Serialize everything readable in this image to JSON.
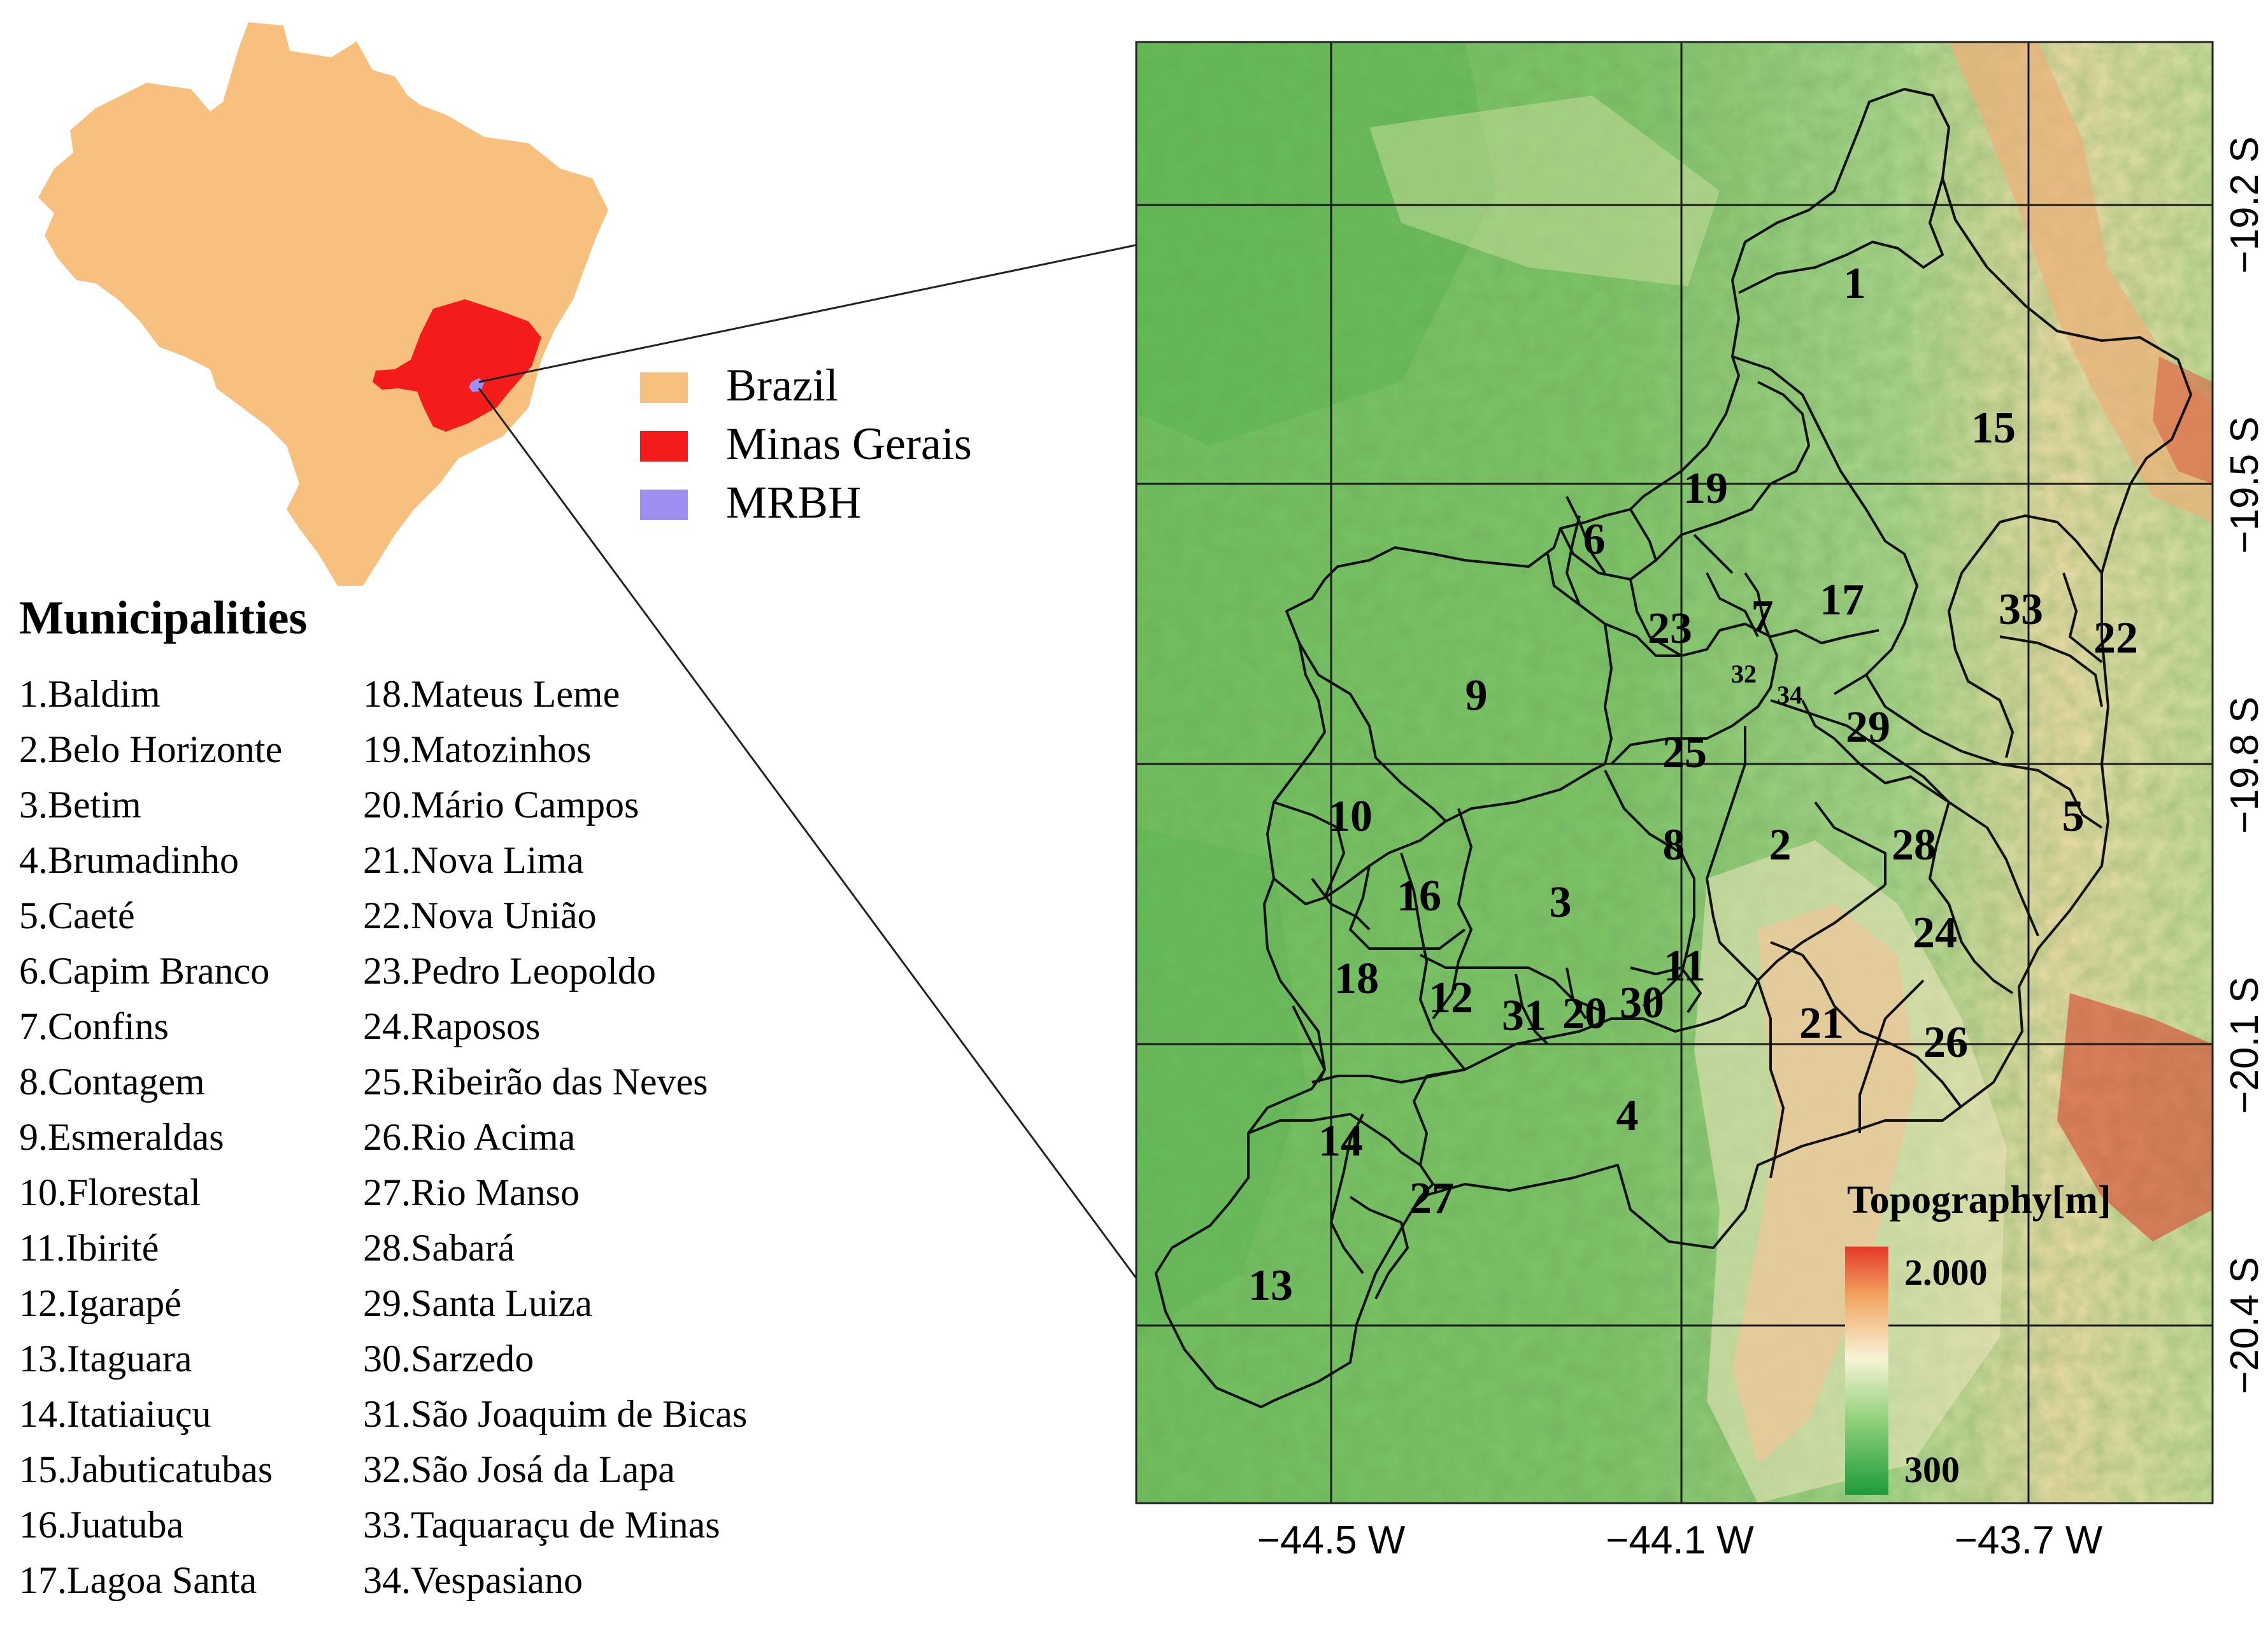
{
  "legend": {
    "items": [
      {
        "label": "Brazil",
        "color": "#F8C07F"
      },
      {
        "label": "Minas Gerais",
        "color": "#F41B1B"
      },
      {
        "label": "MRBH",
        "color": "#9D8FF0"
      }
    ]
  },
  "municipalities": {
    "title": "Municipalities",
    "column_1": [
      "1.Baldim",
      "2.Belo Horizonte",
      "3.Betim",
      "4.Brumadinho",
      "5.Caeté",
      "6.Capim Branco",
      "7.Confins",
      "8.Contagem",
      "9.Esmeraldas",
      "10.Florestal",
      "11.Ibirité",
      "12.Igarapé",
      "13.Itaguara",
      "14.Itatiaiuçu",
      "15.Jabuticatubas",
      "16.Juatuba",
      "17.Lagoa Santa"
    ],
    "column_2": [
      "18.Mateus Leme",
      "19.Matozinhos",
      "20.Mário Campos",
      "21.Nova Lima",
      "22.Nova União",
      "23.Pedro Leopoldo",
      "24.Raposos",
      "25.Ribeirão das Neves",
      "26.Rio Acima",
      "27.Rio Manso",
      "28.Sabará",
      "29.Santa Luiza",
      "30.Sarzedo",
      "31.São Joaquim de Bicas",
      "32.São Josá da Lapa",
      "33.Taquaraçu de Minas",
      "34.Vespasiano"
    ]
  },
  "map": {
    "lon_ticks": [
      {
        "label": "−44.5 W",
        "value": -44.5
      },
      {
        "label": "−44.1 W",
        "value": -44.1
      },
      {
        "label": "−43.7 W",
        "value": -43.7
      }
    ],
    "lat_ticks": [
      {
        "label": "−19.2 S",
        "value": -19.2
      },
      {
        "label": "−19.5 S",
        "value": -19.5
      },
      {
        "label": "−19.8 S",
        "value": -19.8
      },
      {
        "label": "−20.1 S",
        "value": -20.1
      },
      {
        "label": "−20.4 S",
        "value": -20.4
      }
    ],
    "region_labels": [
      "1",
      "2",
      "3",
      "4",
      "5",
      "6",
      "7",
      "8",
      "9",
      "10",
      "11",
      "12",
      "13",
      "14",
      "15",
      "16",
      "17",
      "18",
      "19",
      "20",
      "21",
      "22",
      "23",
      "24",
      "25",
      "26",
      "27",
      "28",
      "29",
      "30",
      "31",
      "32",
      "33",
      "34"
    ]
  },
  "topography": {
    "title": "Topography[m]",
    "max_label": "2.000",
    "min_label": "300",
    "max_value": 2000,
    "min_value": 300,
    "colors": [
      "#1E9B3C",
      "#8FD07A",
      "#F7F3D6",
      "#F2A460",
      "#E5392A"
    ]
  }
}
